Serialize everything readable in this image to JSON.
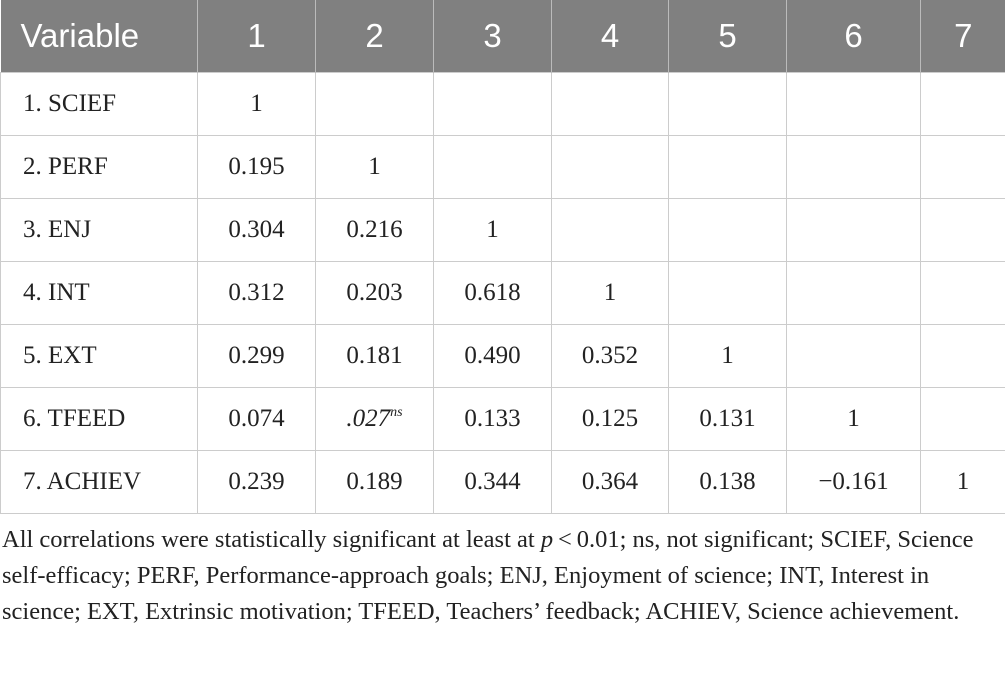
{
  "table": {
    "header": [
      "Variable",
      "1",
      "2",
      "3",
      "4",
      "5",
      "6",
      "7"
    ],
    "rows": [
      [
        "1.  SCIEF",
        "1"
      ],
      [
        "2.  PERF",
        "0.195",
        "1"
      ],
      [
        "3.  ENJ",
        "0.304",
        "0.216",
        "1"
      ],
      [
        "4.  INT",
        "0.312",
        "0.203",
        "0.618",
        "1"
      ],
      [
        "5.  EXT",
        "0.299",
        "0.181",
        "0.490",
        "0.352",
        "1"
      ],
      [
        "6.  TFEED",
        "0.074",
        {
          "value": ".027",
          "sup": "ns"
        },
        "0.133",
        "0.125",
        "0.131",
        "1"
      ],
      [
        "7.  ACHIEV",
        "0.239",
        "0.189",
        "0.344",
        "0.364",
        "0.138",
        "−0.161",
        "1"
      ]
    ]
  },
  "note": {
    "before": "All correlations were statistically significant at least at ",
    "italic": "p",
    "after": " < 0.01; ns, not significant; SCIEF, Science self-efficacy; PERF, Performance-approach goals; ENJ, Enjoyment of science; INT, Interest in science; EXT, Extrinsic motivation; TFEED, Teachers’ feedback; ACHIEV, Science achievement."
  }
}
